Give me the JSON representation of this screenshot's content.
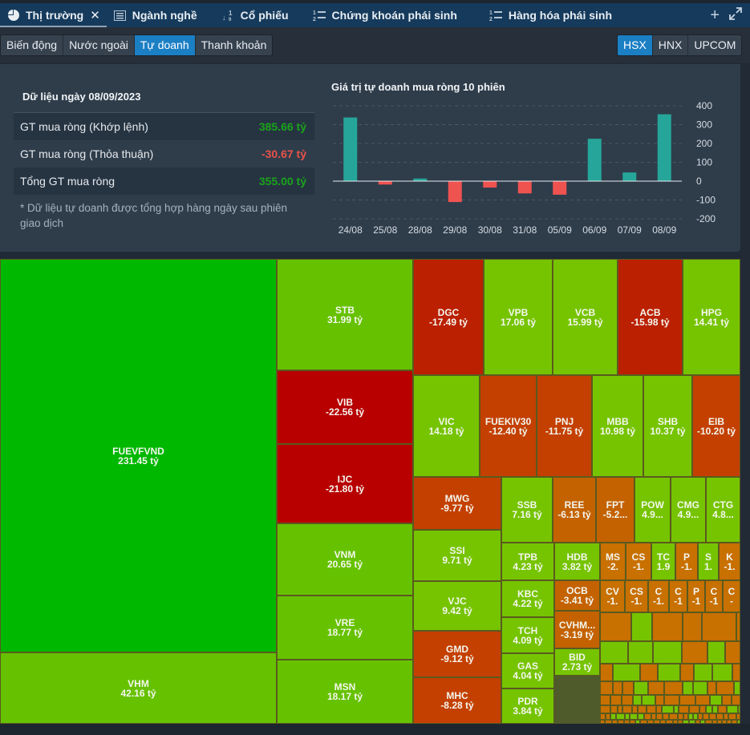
{
  "tabs": [
    {
      "label": "Thị trường",
      "icon": "pie-chart-icon",
      "active": true,
      "closable": true
    },
    {
      "label": "Ngành nghề",
      "icon": "list-icon",
      "active": false
    },
    {
      "label": "Cổ phiếu",
      "icon": "sort-numeric-icon",
      "active": false
    },
    {
      "label": "Chứng khoán phái sinh",
      "icon": "ordered-list-icon",
      "active": false
    },
    {
      "label": "Hàng hóa phái sinh",
      "icon": "ordered-list-icon",
      "active": false
    }
  ],
  "tab_actions": {
    "add": "+",
    "expand": "⤢"
  },
  "view_tabs": [
    {
      "label": "Biến động",
      "active": false
    },
    {
      "label": "Nước ngoài",
      "active": false
    },
    {
      "label": "Tự doanh",
      "active": true
    },
    {
      "label": "Thanh khoản",
      "active": false
    }
  ],
  "exchanges": [
    {
      "label": "HSX",
      "active": true
    },
    {
      "label": "HNX",
      "active": false
    },
    {
      "label": "UPCOM",
      "active": false
    }
  ],
  "summary": {
    "title": "Dữ liệu ngày 08/09/2023",
    "rows": [
      {
        "label": "GT mua ròng (Khớp lệnh)",
        "value": "385.66 tỷ",
        "sign": "pos"
      },
      {
        "label": "GT mua ròng (Thỏa thuận)",
        "value": "-30.67 tỷ",
        "sign": "neg"
      },
      {
        "label": "Tổng GT mua ròng",
        "value": "355.00 tỷ",
        "sign": "pos"
      }
    ],
    "note": "* Dữ liệu tự doanh được tổng hợp hàng ngày sau phiên giao dịch"
  },
  "colors": {
    "bar_positive": "#26a69a",
    "bar_negative": "#ef5350",
    "strong_green": "#00b800",
    "green": "#66c200",
    "light_green": "#76c400",
    "strong_red": "#b80000",
    "red": "#bb2000",
    "orange_red": "#c44000",
    "orange": "#c46200",
    "light_orange": "#c87000"
  },
  "chart_data": {
    "type": "bar",
    "title": "Giá trị tự doanh mua ròng 10 phiên",
    "categories": [
      "24/08",
      "25/08",
      "28/08",
      "29/08",
      "30/08",
      "31/08",
      "05/09",
      "06/09",
      "07/09",
      "08/09"
    ],
    "values": [
      338,
      -18,
      14,
      -111,
      -34,
      -65,
      -72,
      225,
      46,
      355
    ],
    "ylim": [
      -200,
      400
    ],
    "yticks": [
      "400",
      "300",
      "200",
      "100",
      "0",
      "-100",
      "-200"
    ],
    "ytick_values": [
      400,
      300,
      200,
      100,
      0,
      -100,
      -200
    ],
    "xlabel": "",
    "ylabel": "",
    "grid": true,
    "legend": "none"
  },
  "treemap": [
    {
      "ticker": "FUEVFVND",
      "value": "231.45 tỷ",
      "color": "strong_green"
    },
    {
      "ticker": "VHM",
      "value": "42.16 tỷ",
      "color": "green"
    },
    {
      "ticker": "STB",
      "value": "31.99 tỷ",
      "color": "green"
    },
    {
      "ticker": "VIB",
      "value": "-22.56 tỷ",
      "color": "strong_red"
    },
    {
      "ticker": "IJC",
      "value": "-21.80 tỷ",
      "color": "strong_red"
    },
    {
      "ticker": "VNM",
      "value": "20.65 tỷ",
      "color": "green"
    },
    {
      "ticker": "VRE",
      "value": "18.77 tỷ",
      "color": "green"
    },
    {
      "ticker": "MSN",
      "value": "18.17 tỷ",
      "color": "green"
    },
    {
      "ticker": "DGC",
      "value": "-17.49 tỷ",
      "color": "red"
    },
    {
      "ticker": "VPB",
      "value": "17.06 tỷ",
      "color": "light_green"
    },
    {
      "ticker": "VCB",
      "value": "15.99 tỷ",
      "color": "light_green"
    },
    {
      "ticker": "ACB",
      "value": "-15.98 tỷ",
      "color": "red"
    },
    {
      "ticker": "HPG",
      "value": "14.41 tỷ",
      "color": "light_green"
    },
    {
      "ticker": "VIC",
      "value": "14.18 tỷ",
      "color": "light_green"
    },
    {
      "ticker": "FUEKIV30",
      "value": "-12.40 tỷ",
      "color": "orange_red"
    },
    {
      "ticker": "PNJ",
      "value": "-11.75 tỷ",
      "color": "orange_red"
    },
    {
      "ticker": "MBB",
      "value": "10.98 tỷ",
      "color": "light_green"
    },
    {
      "ticker": "SHB",
      "value": "10.37 tỷ",
      "color": "light_green"
    },
    {
      "ticker": "EIB",
      "value": "-10.20 tỷ",
      "color": "orange_red"
    },
    {
      "ticker": "MWG",
      "value": "-9.77 tỷ",
      "color": "orange_red"
    },
    {
      "ticker": "SSI",
      "value": "9.71 tỷ",
      "color": "light_green"
    },
    {
      "ticker": "VJC",
      "value": "9.42 tỷ",
      "color": "light_green"
    },
    {
      "ticker": "GMD",
      "value": "-9.12 tỷ",
      "color": "orange_red"
    },
    {
      "ticker": "MHC",
      "value": "-8.28 tỷ",
      "color": "orange_red"
    },
    {
      "ticker": "SSB",
      "value": "7.16 tỷ",
      "color": "light_green"
    },
    {
      "ticker": "REE",
      "value": "-6.13 tỷ",
      "color": "orange"
    },
    {
      "ticker": "FPT",
      "value": "-5.2...",
      "color": "orange"
    },
    {
      "ticker": "POW",
      "value": "4.9...",
      "color": "light_green"
    },
    {
      "ticker": "CMG",
      "value": "4.9...",
      "color": "light_green"
    },
    {
      "ticker": "CTG",
      "value": "4.8...",
      "color": "light_green"
    },
    {
      "ticker": "TPB",
      "value": "4.23 tỷ",
      "color": "light_green"
    },
    {
      "ticker": "HDB",
      "value": "3.82 tỷ",
      "color": "light_green"
    },
    {
      "ticker": "KBC",
      "value": "4.22 tỷ",
      "color": "light_green"
    },
    {
      "ticker": "OCB",
      "value": "-3.41 tỷ",
      "color": "orange"
    },
    {
      "ticker": "TCH",
      "value": "4.09 tỷ",
      "color": "light_green"
    },
    {
      "ticker": "CVHM...",
      "value": "-3.19 tỷ",
      "color": "orange"
    },
    {
      "ticker": "GAS",
      "value": "4.04 tỷ",
      "color": "light_green"
    },
    {
      "ticker": "BID",
      "value": "2.73 tỷ",
      "color": "light_green"
    },
    {
      "ticker": "PDR",
      "value": "3.84 tỷ",
      "color": "light_green"
    },
    {
      "ticker": "MS",
      "value": "-2.",
      "color": "light_orange"
    },
    {
      "ticker": "CS",
      "value": "-1.",
      "color": "light_orange"
    },
    {
      "ticker": "TC",
      "value": "1.9",
      "color": "light_green"
    },
    {
      "ticker": "P",
      "value": "-1.",
      "color": "light_orange"
    },
    {
      "ticker": "S",
      "value": "1.",
      "color": "light_green"
    },
    {
      "ticker": "K",
      "value": "-1.",
      "color": "light_orange"
    },
    {
      "ticker": "CV",
      "value": "-1.",
      "color": "light_orange"
    },
    {
      "ticker": "CS",
      "value": "-1.",
      "color": "light_orange"
    },
    {
      "ticker": "C",
      "value": "-1.",
      "color": "light_orange"
    },
    {
      "ticker": "C",
      "value": "-1",
      "color": "light_orange"
    },
    {
      "ticker": "P",
      "value": "-1",
      "color": "light_orange"
    },
    {
      "ticker": "C",
      "value": "-1",
      "color": "light_orange"
    },
    {
      "ticker": "C",
      "value": "-",
      "color": "light_orange"
    }
  ]
}
